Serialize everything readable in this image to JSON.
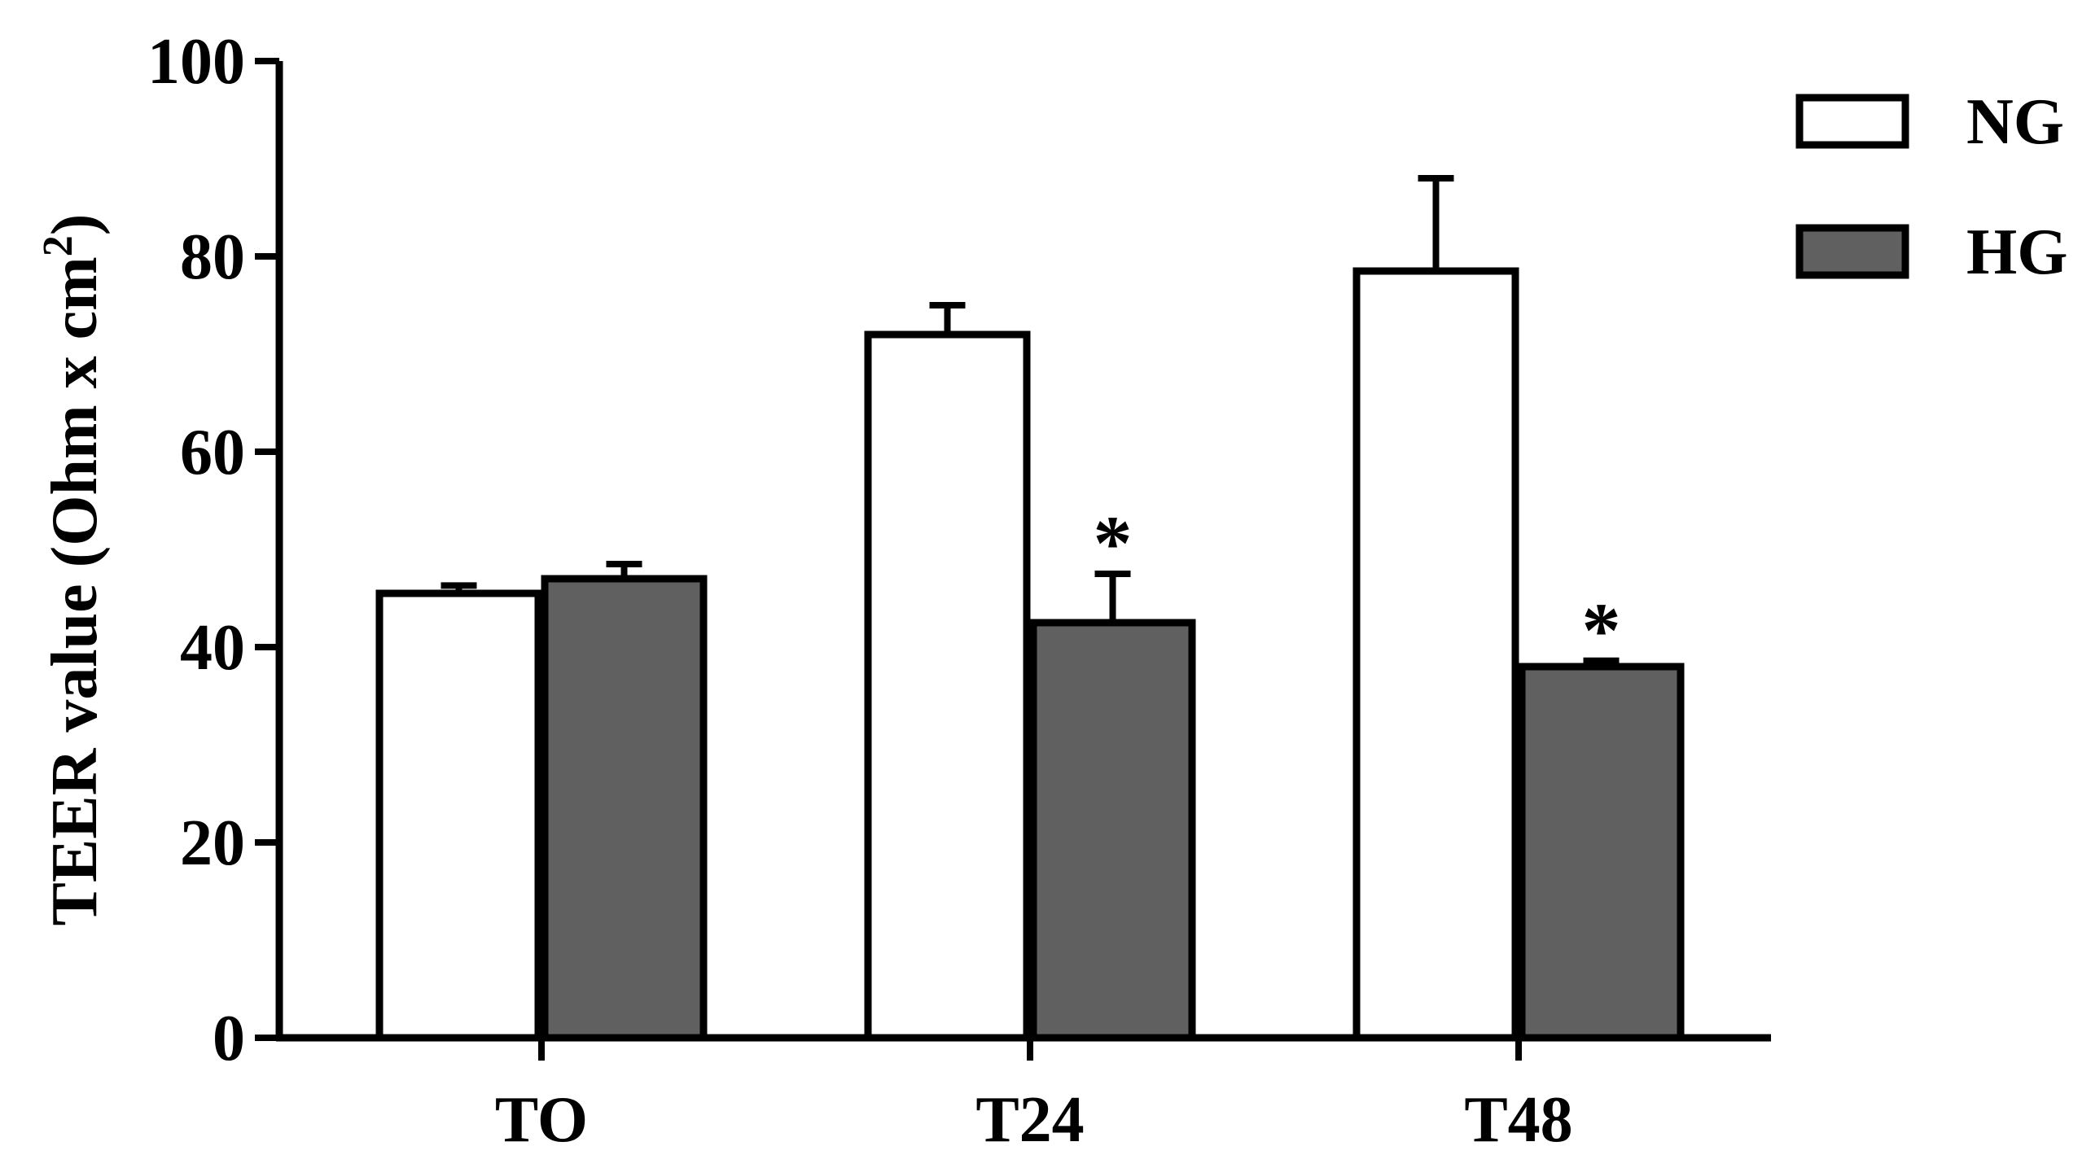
{
  "chart_data": {
    "type": "bar",
    "ylabel_main": "TEER value (Ohm x cm",
    "ylabel_sup": "2",
    "ylabel_close": ")",
    "ylim": [
      0,
      100
    ],
    "yticks": [
      0,
      20,
      40,
      60,
      80,
      100
    ],
    "categories": [
      "TO",
      "T24",
      "T48"
    ],
    "series": [
      {
        "name": "NG",
        "values": [
          45.5,
          72,
          78.5
        ],
        "errors": [
          0.8,
          3,
          9.5
        ],
        "color": "#ffffff"
      },
      {
        "name": "HG",
        "values": [
          47,
          42.5,
          38
        ],
        "errors": [
          1.5,
          5,
          0.6
        ],
        "color": "#606060"
      }
    ],
    "annotations": [
      {
        "category": "T24",
        "series": "HG",
        "text": "*"
      },
      {
        "category": "T48",
        "series": "HG",
        "text": "*"
      }
    ],
    "legend_position": "top-right",
    "grid": false
  }
}
